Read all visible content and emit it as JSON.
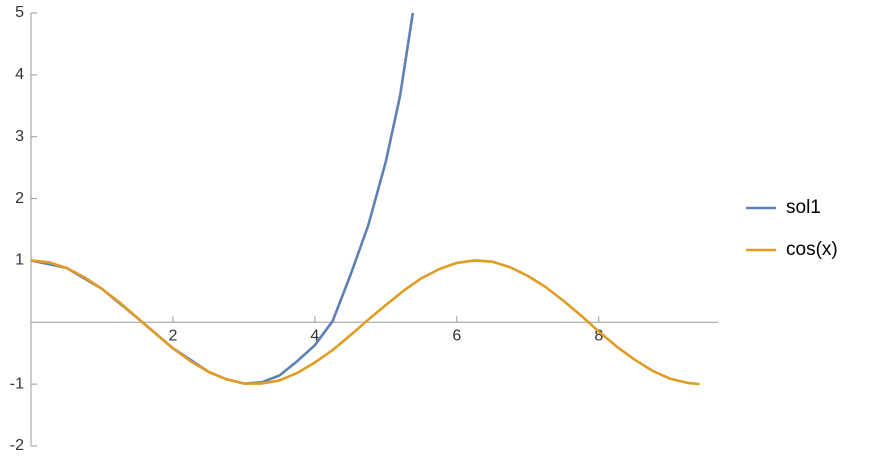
{
  "chart_data": {
    "type": "line",
    "xlim": [
      0,
      9.68
    ],
    "ylim": [
      -2,
      5
    ],
    "xticks": [
      2,
      4,
      6,
      8
    ],
    "yticks": [
      -2,
      -1,
      1,
      2,
      3,
      4,
      5
    ],
    "legend": "right",
    "series": [
      {
        "name": "sol1",
        "color": "#5e81b5",
        "x": [
          0,
          0.5,
          1,
          1.5,
          2,
          2.5,
          2.75,
          3,
          3.25,
          3.5,
          3.75,
          4,
          4.25,
          4.5,
          4.75,
          5,
          5.2,
          5.38
        ],
        "values": [
          1,
          0.88,
          0.54,
          0.07,
          -0.42,
          -0.8,
          -0.92,
          -0.99,
          -0.97,
          -0.86,
          -0.63,
          -0.37,
          0.02,
          0.76,
          1.56,
          2.6,
          3.66,
          5
        ]
      },
      {
        "name": "cos(x)",
        "color": "#e19c24",
        "x": [
          0,
          0.25,
          0.5,
          0.75,
          1,
          1.25,
          1.5,
          1.75,
          2,
          2.25,
          2.5,
          2.75,
          3,
          3.25,
          3.5,
          3.75,
          4,
          4.25,
          4.5,
          4.75,
          5,
          5.25,
          5.5,
          5.75,
          6,
          6.25,
          6.5,
          6.75,
          7,
          7.25,
          7.5,
          7.75,
          8,
          8.25,
          8.5,
          8.75,
          9,
          9.25,
          9.42
        ],
        "values": [
          1,
          0.97,
          0.88,
          0.73,
          0.54,
          0.32,
          0.07,
          -0.18,
          -0.42,
          -0.63,
          -0.8,
          -0.92,
          -0.99,
          -0.99,
          -0.94,
          -0.82,
          -0.65,
          -0.45,
          -0.21,
          0.04,
          0.28,
          0.51,
          0.71,
          0.86,
          0.96,
          1,
          0.98,
          0.89,
          0.75,
          0.57,
          0.35,
          0.11,
          -0.15,
          -0.39,
          -0.6,
          -0.78,
          -0.91,
          -0.98,
          -1
        ]
      }
    ]
  }
}
